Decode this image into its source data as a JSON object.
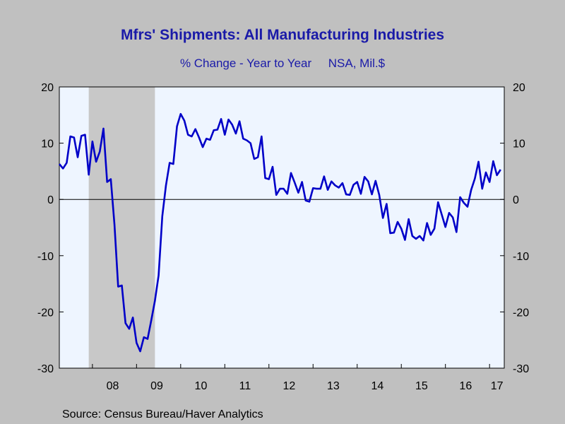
{
  "header": {
    "title": "Mfrs' Shipments: All Manufacturing Industries",
    "subtitle_left": "% Change - Year to Year",
    "subtitle_right": "NSA, Mil.$"
  },
  "footer": {
    "source": "Source:  Census Bureau/Haver Analytics"
  },
  "colors": {
    "line": "#0000c8",
    "recession": "#c8c8c8",
    "plot_bg": "#eef5ff",
    "text": "#1a1aa8"
  },
  "chart_data": {
    "type": "line",
    "title": "Mfrs' Shipments: All Manufacturing Industries",
    "subtitle": "% Change - Year to Year    NSA, Mil.$",
    "ylim": [
      -30,
      20
    ],
    "y_ticks": [
      20,
      10,
      0,
      -10,
      -20,
      -30
    ],
    "x_range": [
      "2007-04",
      "2017-05"
    ],
    "x_tick_labels": [
      "08",
      "09",
      "10",
      "11",
      "12",
      "13",
      "14",
      "15",
      "16",
      "17"
    ],
    "zero_line": true,
    "grid": false,
    "recession_shading": {
      "start": "2007-12",
      "end": "2009-06"
    },
    "series": [
      {
        "start": "2007-04",
        "frequency": "monthly",
        "values": [
          6.3,
          5.5,
          6.5,
          11.2,
          11.0,
          7.5,
          11.3,
          11.5,
          4.4,
          10.3,
          6.7,
          8.5,
          12.6,
          3.1,
          3.6,
          -4.5,
          -15.5,
          -15.3,
          -22.0,
          -23.0,
          -21.0,
          -25.5,
          -27.0,
          -24.5,
          -24.8,
          -21.5,
          -18.0,
          -13.5,
          -3.0,
          2.5,
          6.5,
          6.3,
          13.0,
          15.2,
          14.0,
          11.5,
          11.2,
          12.5,
          11.0,
          9.3,
          10.8,
          10.6,
          12.3,
          12.4,
          14.3,
          11.5,
          14.2,
          13.3,
          11.7,
          13.9,
          10.8,
          10.5,
          10.0,
          7.2,
          7.5,
          11.2,
          3.8,
          3.6,
          5.8,
          0.8,
          1.9,
          1.9,
          1.0,
          4.7,
          3.0,
          1.2,
          3.1,
          -0.2,
          -0.4,
          2.0,
          1.9,
          1.9,
          4.1,
          1.7,
          3.2,
          2.5,
          2.1,
          2.9,
          0.9,
          0.8,
          2.6,
          3.1,
          1.0,
          4.0,
          3.2,
          0.9,
          3.3,
          0.8,
          -3.3,
          -0.8,
          -6.0,
          -5.9,
          -4.0,
          -5.2,
          -7.2,
          -3.5,
          -6.5,
          -7.0,
          -6.5,
          -7.3,
          -4.2,
          -6.3,
          -5.2,
          -0.5,
          -2.7,
          -4.9,
          -2.4,
          -3.2,
          -5.8,
          0.4,
          -0.6,
          -1.3,
          1.7,
          3.7,
          6.7,
          1.9,
          4.8,
          3.1,
          6.8,
          4.3,
          5.3
        ]
      }
    ]
  }
}
